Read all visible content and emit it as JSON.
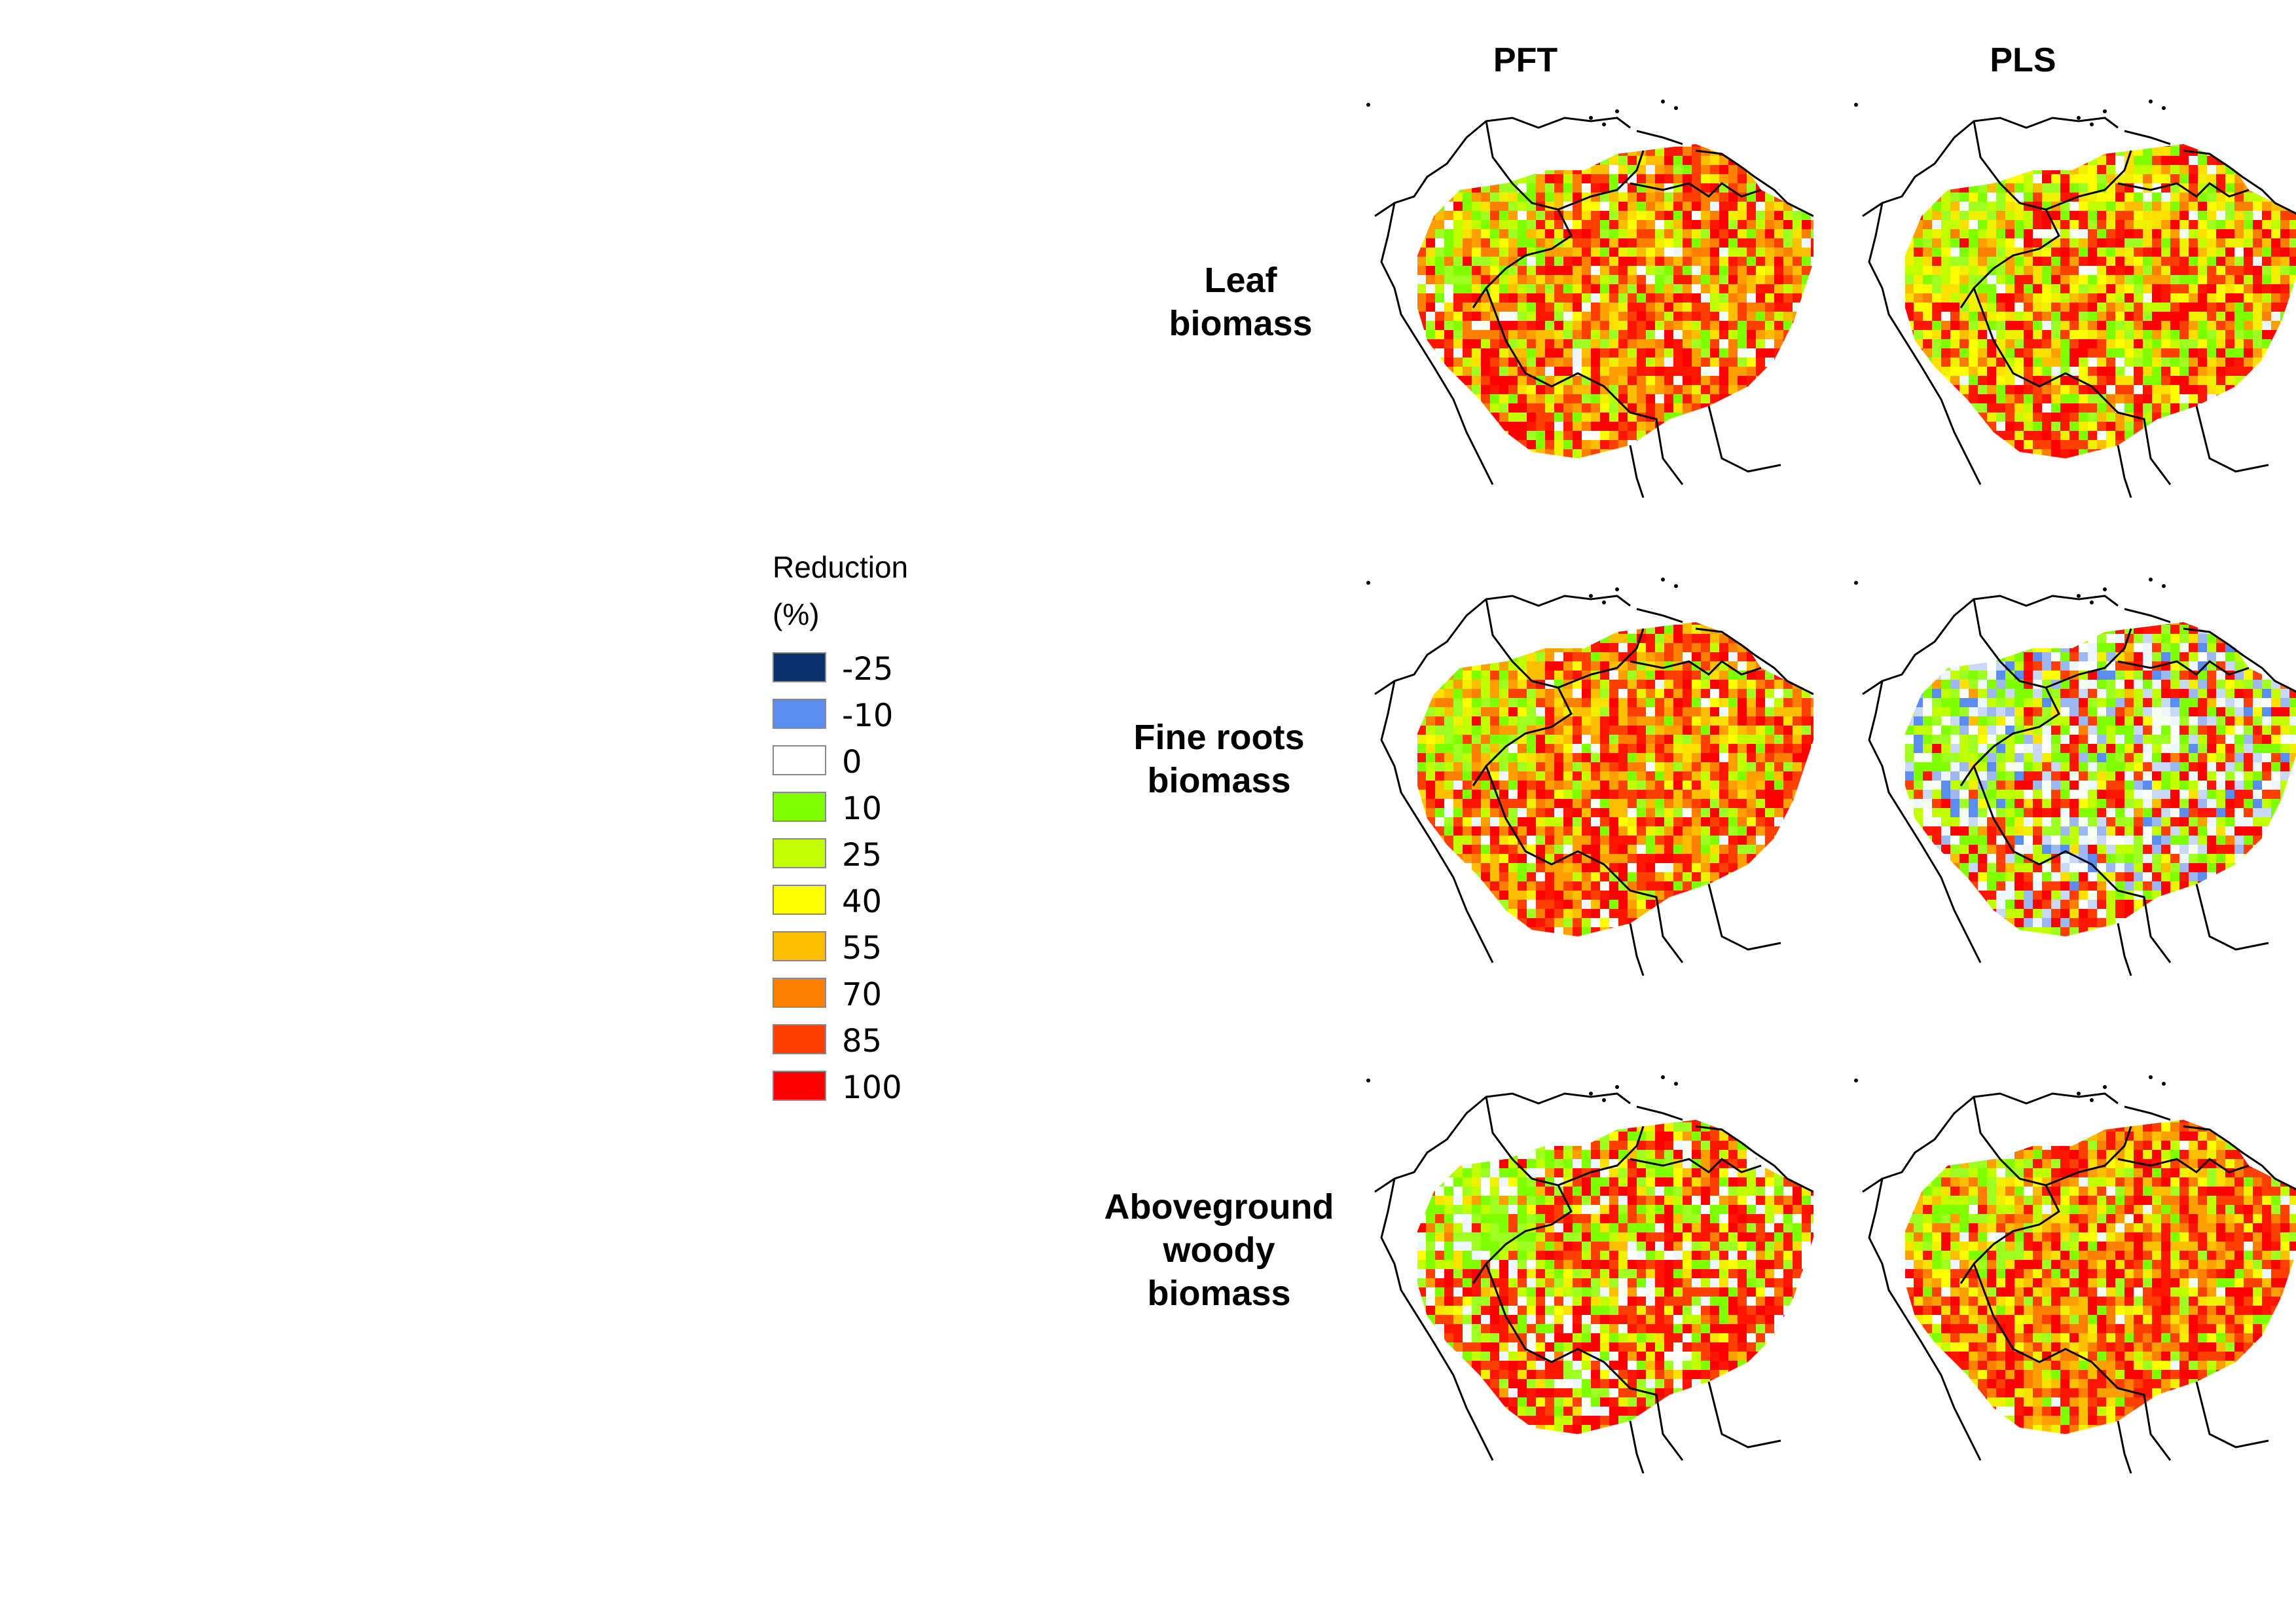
{
  "columns": [
    "PFT",
    "PLS"
  ],
  "rows": [
    {
      "label_lines": [
        "Leaf",
        "biomass"
      ]
    },
    {
      "label_lines": [
        "Fine roots",
        "biomass"
      ]
    },
    {
      "label_lines": [
        "Aboveground",
        "woody",
        "biomass"
      ]
    }
  ],
  "legend": {
    "title_lines": [
      "Reduction",
      "(%)"
    ],
    "items": [
      {
        "label": "-25",
        "color": "#08306b"
      },
      {
        "label": "-10",
        "color": "#5b8def"
      },
      {
        "label": "0",
        "color": "#ffffff"
      },
      {
        "label": "10",
        "color": "#7fff00"
      },
      {
        "label": "25",
        "color": "#bfff00"
      },
      {
        "label": "40",
        "color": "#ffff00"
      },
      {
        "label": "55",
        "color": "#ffbf00"
      },
      {
        "label": "70",
        "color": "#ff8000"
      },
      {
        "label": "85",
        "color": "#ff4000"
      },
      {
        "label": "100",
        "color": "#ff0000"
      }
    ]
  },
  "panels": [
    {
      "row": 0,
      "col": 0,
      "tones": {
        "red": 0.34,
        "orange": 0.3,
        "yellow": 0.1,
        "green": 0.2,
        "white": 0.06,
        "blue": 0.0
      }
    },
    {
      "row": 0,
      "col": 1,
      "tones": {
        "red": 0.3,
        "orange": 0.12,
        "yellow": 0.28,
        "green": 0.24,
        "white": 0.06,
        "blue": 0.0
      }
    },
    {
      "row": 1,
      "col": 0,
      "tones": {
        "red": 0.36,
        "orange": 0.32,
        "yellow": 0.1,
        "green": 0.16,
        "white": 0.06,
        "blue": 0.0
      }
    },
    {
      "row": 1,
      "col": 1,
      "tones": {
        "red": 0.26,
        "orange": 0.02,
        "yellow": 0.06,
        "green": 0.3,
        "white": 0.18,
        "blue": 0.18
      }
    },
    {
      "row": 2,
      "col": 0,
      "tones": {
        "red": 0.36,
        "orange": 0.06,
        "yellow": 0.12,
        "green": 0.3,
        "white": 0.16,
        "blue": 0.0
      }
    },
    {
      "row": 2,
      "col": 1,
      "tones": {
        "red": 0.34,
        "orange": 0.32,
        "yellow": 0.16,
        "green": 0.14,
        "white": 0.04,
        "blue": 0.0
      }
    }
  ]
}
